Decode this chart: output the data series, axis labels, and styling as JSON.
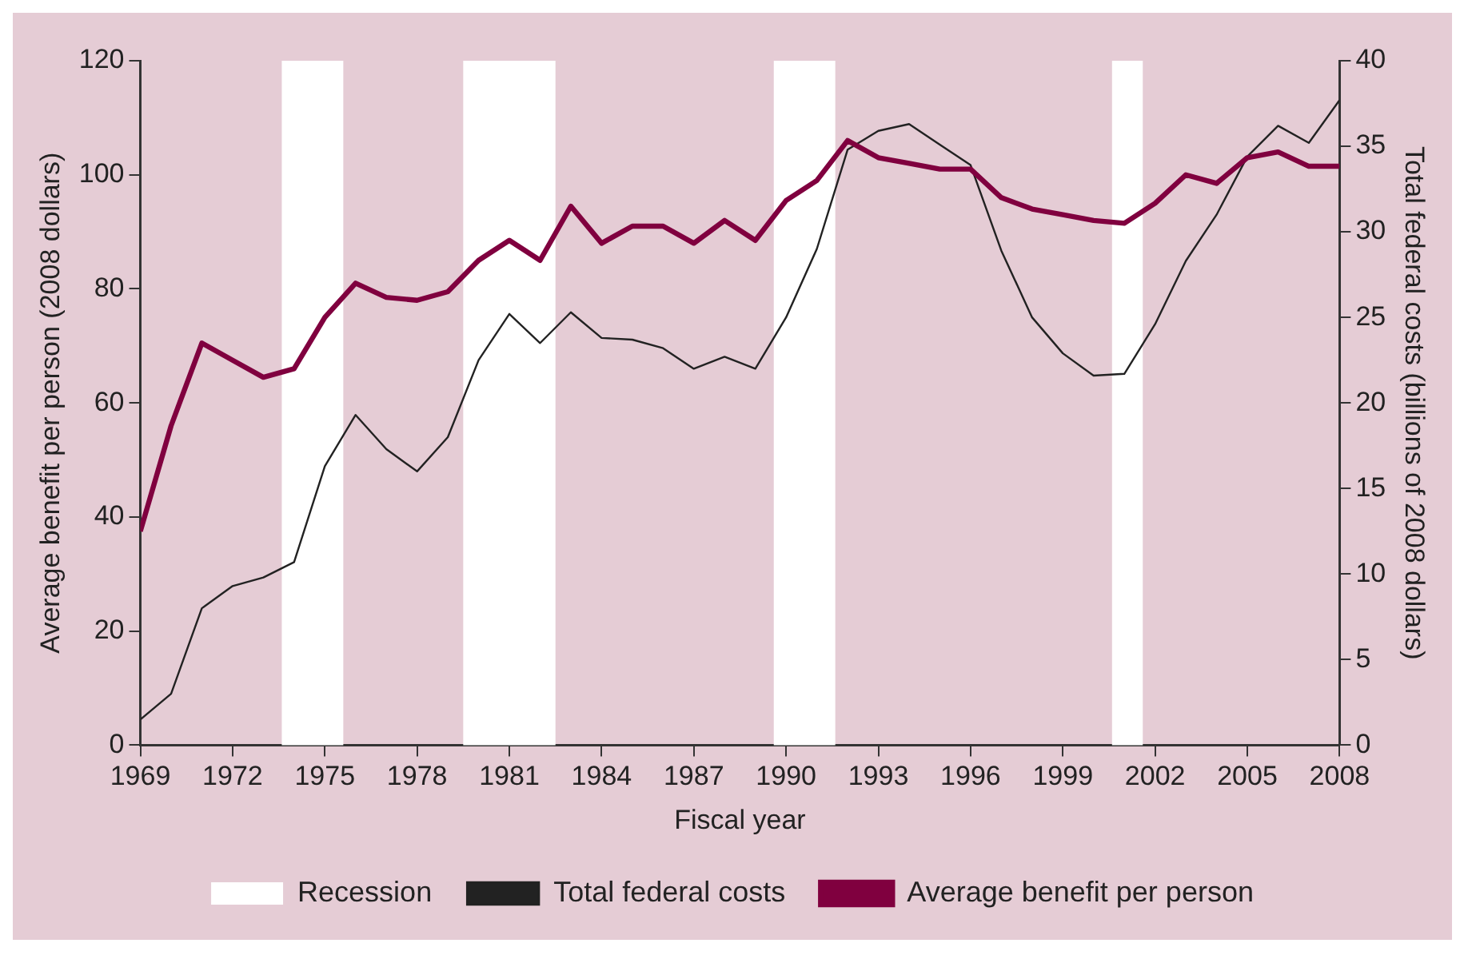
{
  "chart_data": {
    "type": "line",
    "xlabel": "Fiscal year",
    "ylabel": "Average benefit per person (2008 dollars)",
    "y2label": "Total federal costs (billions of 2008 dollars)",
    "x": [
      1969,
      1970,
      1971,
      1972,
      1973,
      1974,
      1975,
      1976,
      1977,
      1978,
      1979,
      1980,
      1981,
      1982,
      1983,
      1984,
      1985,
      1986,
      1987,
      1988,
      1989,
      1990,
      1991,
      1992,
      1993,
      1994,
      1995,
      1996,
      1997,
      1998,
      1999,
      2000,
      2001,
      2002,
      2003,
      2004,
      2005,
      2006,
      2007,
      2008
    ],
    "series": [
      {
        "name": "Total federal costs",
        "color": "#222222",
        "axis": "y2",
        "values": [
          1.5,
          3,
          8,
          9.3,
          9.8,
          10.7,
          16.3,
          19.3,
          17.3,
          16,
          18,
          22.5,
          25.2,
          23.5,
          25.3,
          23.8,
          23.7,
          23.2,
          22,
          22.7,
          22,
          25,
          29,
          34.8,
          35.9,
          36.3,
          35.1,
          33.9,
          28.9,
          25,
          22.9,
          21.6,
          21.7,
          24.6,
          28.3,
          31,
          34.4,
          36.2,
          35.2,
          37.7
        ]
      },
      {
        "name": "Average benefit per person",
        "color": "#80003f",
        "values": [
          37.5,
          56,
          70.5,
          67.5,
          64.5,
          66,
          75,
          81,
          78.5,
          78,
          79.5,
          85,
          88.5,
          85,
          94.5,
          88,
          91,
          91,
          88,
          92,
          88.5,
          95.5,
          99,
          106,
          103,
          102,
          101,
          101,
          96,
          94,
          93,
          92,
          91.5,
          95,
          100,
          98.5,
          103,
          104,
          101.5,
          101.5
        ]
      }
    ],
    "bands": [
      {
        "axis": "x",
        "from": 1973.6,
        "to": 1975.6,
        "label": "Recession",
        "color": "#ffffff"
      },
      {
        "axis": "x",
        "from": 1979.5,
        "to": 1982.5,
        "color": "#ffffff"
      },
      {
        "axis": "x",
        "from": 1989.6,
        "to": 1991.6,
        "color": "#ffffff"
      },
      {
        "axis": "x",
        "from": 2000.6,
        "to": 2001.6,
        "color": "#ffffff"
      }
    ],
    "xlim": [
      1969,
      2008
    ],
    "xticks": [
      1969,
      1972,
      1975,
      1978,
      1981,
      1984,
      1987,
      1990,
      1993,
      1996,
      1999,
      2002,
      2005,
      2008
    ],
    "ylim": [
      0,
      120
    ],
    "yticks": [
      0,
      20,
      40,
      60,
      80,
      100,
      120
    ],
    "y2lim": [
      0,
      40
    ],
    "y2ticks": [
      0,
      5,
      10,
      15,
      20,
      25,
      30,
      35,
      40
    ],
    "grid": false,
    "legend": "bottom",
    "marker": "none"
  }
}
